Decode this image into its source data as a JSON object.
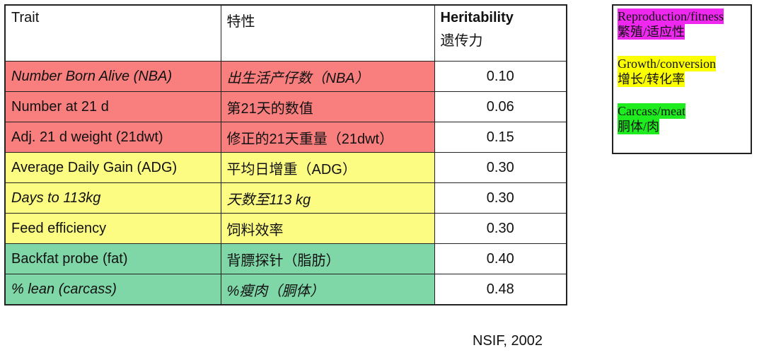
{
  "table": {
    "headers": {
      "trait": "Trait",
      "trait_cn": "特性",
      "heritability": "Heritability",
      "heritability_cn": "遗传力"
    },
    "rows": [
      {
        "trait": "Number Born Alive (NBA)",
        "trait_cn": "出生活产仔数（NBA）",
        "h": "0.10"
      },
      {
        "trait": "Number at 21 d",
        "trait_cn": "第21天的数值",
        "h": "0.06"
      },
      {
        "trait": "Adj. 21 d weight (21dwt)",
        "trait_cn": "修正的21天重量（21dwt）",
        "h": "0.15"
      },
      {
        "trait": "Average Daily Gain (ADG)",
        "trait_cn": "平均日增重（ADG）",
        "h": "0.30"
      },
      {
        "trait": "Days to 113kg",
        "trait_cn": "天数至113 kg",
        "h": "0.30"
      },
      {
        "trait": "Feed efficiency",
        "trait_cn": "饲料效率",
        "h": "0.30"
      },
      {
        "trait": "Backfat probe (fat)",
        "trait_cn": "背膘探针（脂肪）",
        "h": "0.40"
      },
      {
        "trait": "% lean (carcass)",
        "trait_cn": "%瘦肉（胴体）",
        "h": "0.48"
      }
    ]
  },
  "legend": {
    "repro_en": "Reproduction/fitness",
    "repro_cn": "繁殖/适应性",
    "growth_en": "Growth/conversion",
    "growth_cn": "增长/转化率",
    "carcass_en": "Carcass/meat",
    "carcass_cn": "胴体/肉"
  },
  "source": "NSIF, 2002",
  "colors": {
    "reproduction_row": "#f97f7f",
    "growth_row": "#fcfc82",
    "carcass_row": "#7fd6a7",
    "legend_pink": "#ee28ee",
    "legend_yellow": "#fcff00",
    "legend_green": "#1eec1e"
  }
}
